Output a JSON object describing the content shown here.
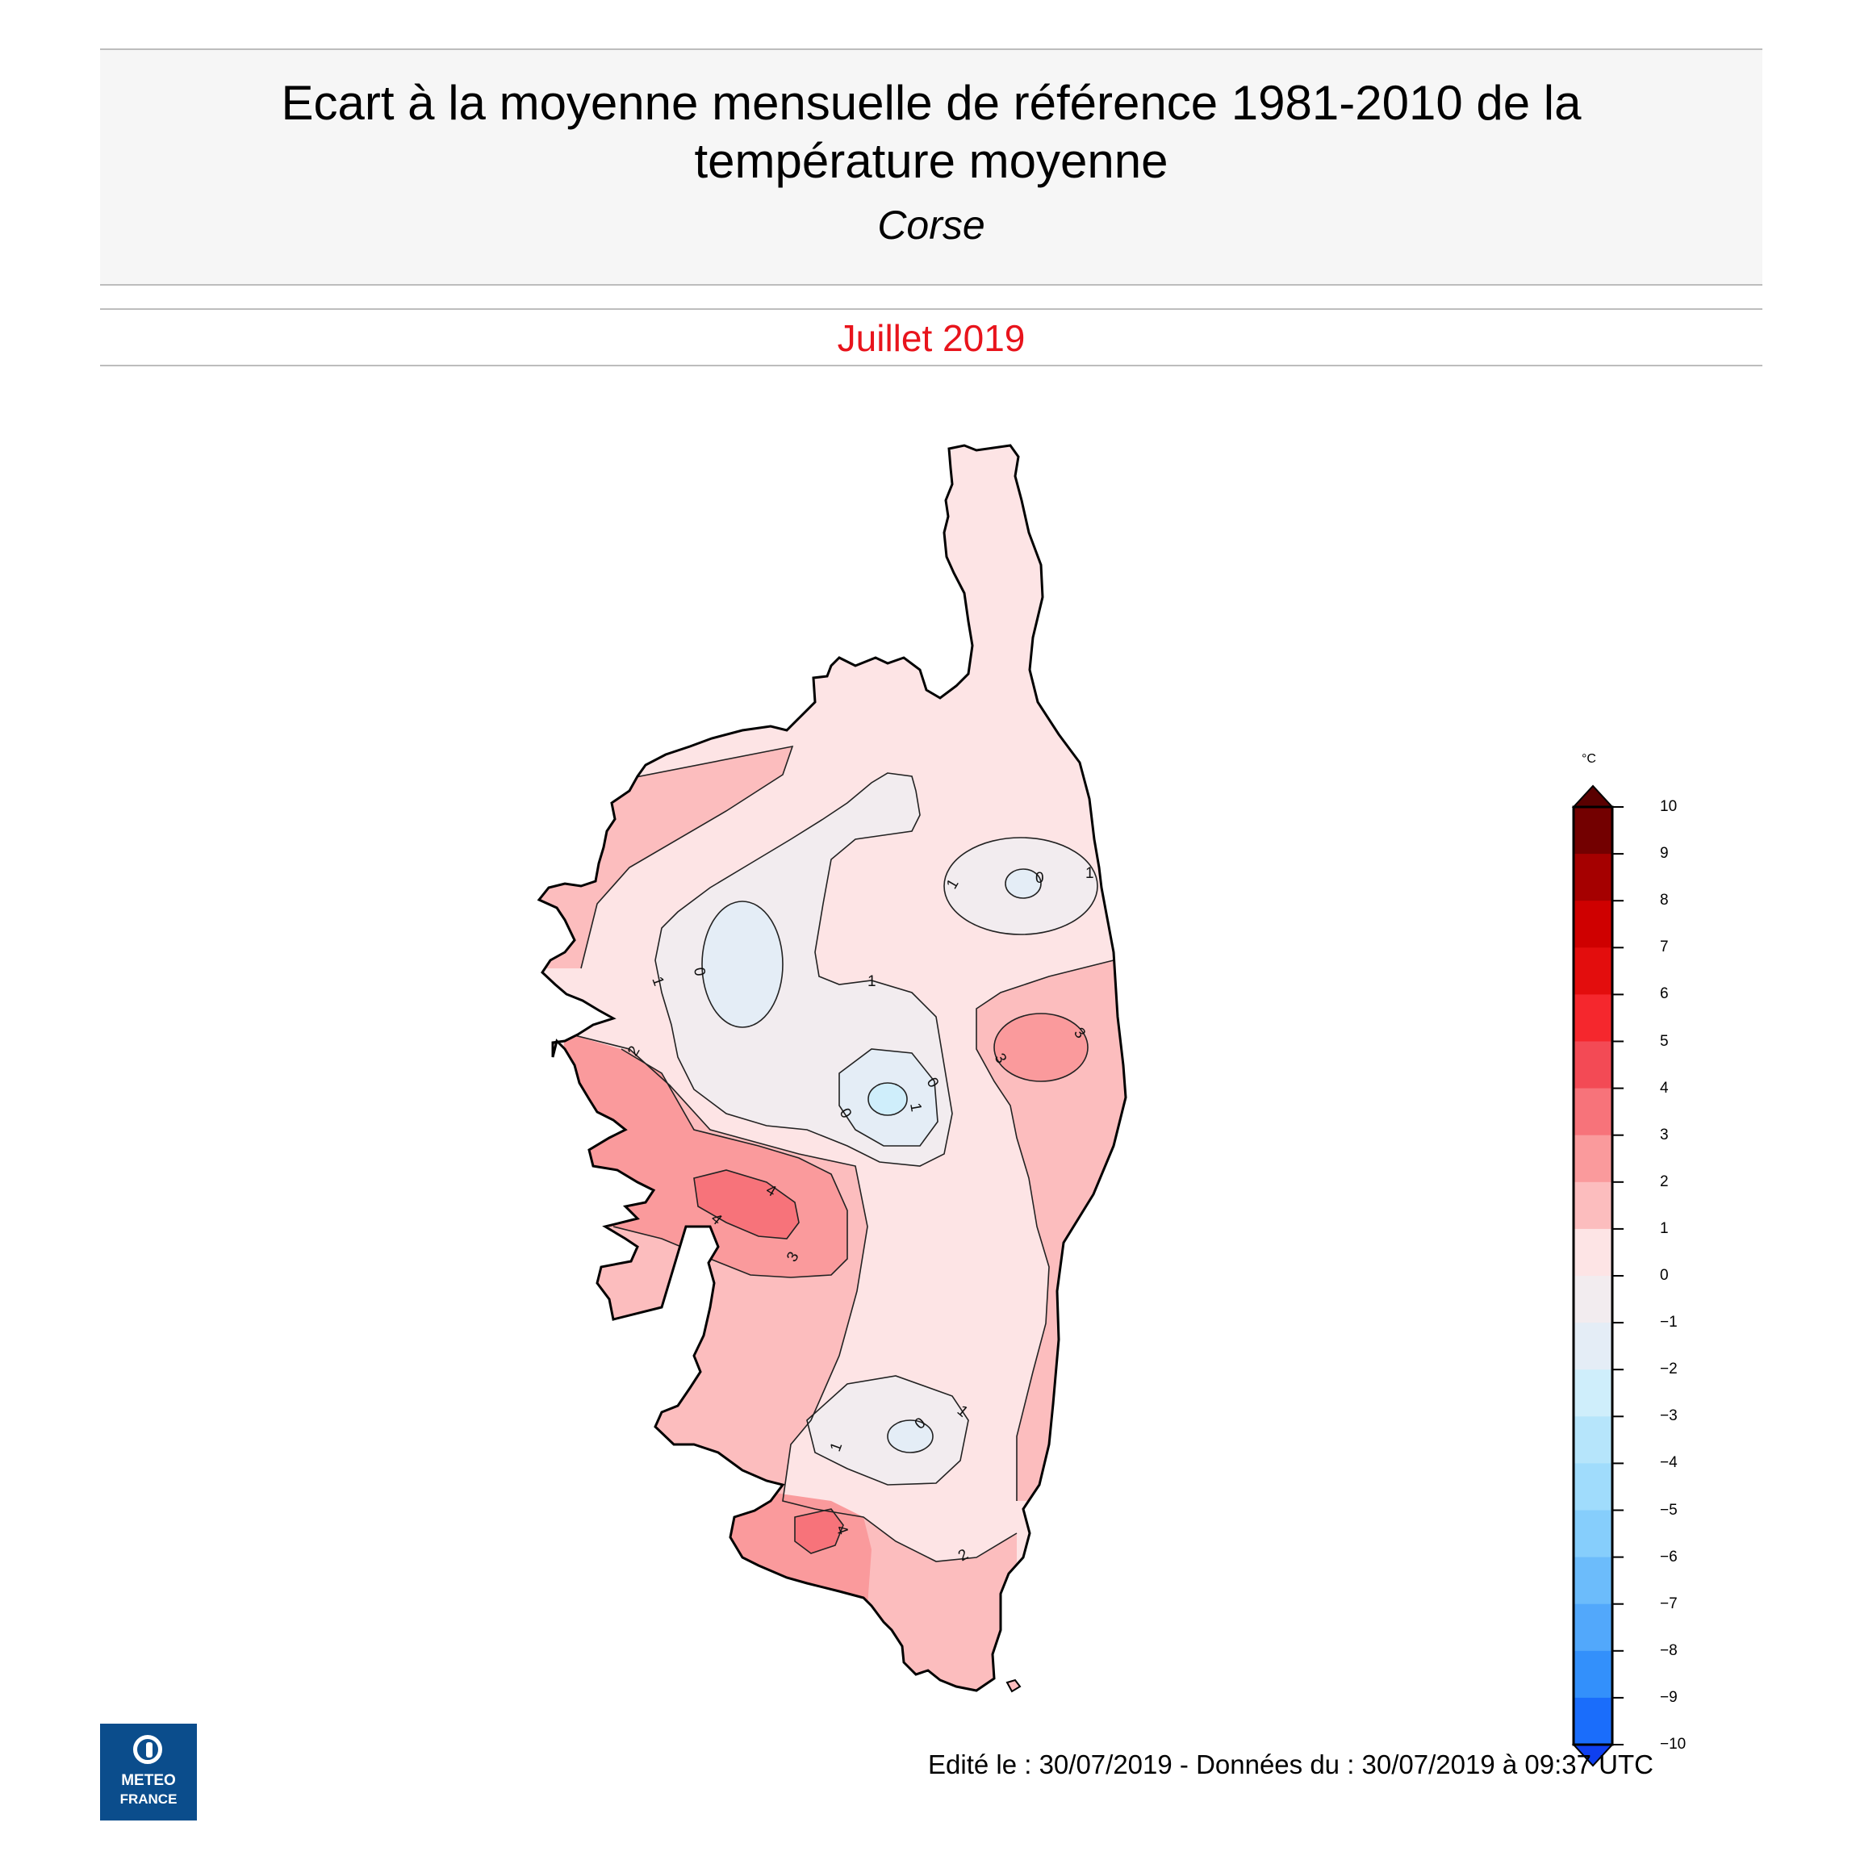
{
  "header": {
    "title_line1": "Ecart à la moyenne mensuelle de référence 1981-2010 de la",
    "title_line2": "température moyenne",
    "region": "Corse"
  },
  "period": "Juillet 2019",
  "footer": "Edité le : 30/07/2019 - Données du : 30/07/2019 à 09:37 UTC",
  "logo": {
    "line1": "METEO",
    "line2": "FRANCE"
  },
  "legend": {
    "unit": "°C",
    "ticks": [
      "10",
      "9",
      "8",
      "7",
      "6",
      "5",
      "4",
      "3",
      "2",
      "1",
      "0",
      "−1",
      "−2",
      "−3",
      "−4",
      "−5",
      "−6",
      "−7",
      "−8",
      "−9",
      "−10"
    ],
    "colors": [
      "#730000",
      "#a50000",
      "#cf0000",
      "#e30d0d",
      "#f5272d",
      "#f34a55",
      "#f7737a",
      "#fa9a9c",
      "#fcbdbe",
      "#fde4e5",
      "#f2ecef",
      "#e4edf6",
      "#cfeefb",
      "#b6e5fb",
      "#a0dcfc",
      "#86cefc",
      "#6cbcfb",
      "#52a8fb",
      "#3390fb",
      "#1a6dfb"
    ],
    "top_arrow_color": "#5a0000",
    "bottom_arrow_color": "#0f40f0"
  },
  "contour_labels": [
    "1",
    "0",
    "1",
    "1",
    "0",
    "1",
    "3",
    "3",
    "2",
    "0",
    "0",
    "1",
    "4",
    "4",
    "3",
    "1",
    "0",
    "1",
    "2",
    "4"
  ],
  "fills": {
    "background_zone": "#fde4e5",
    "zone_2_3": "#fcbdbe",
    "zone_3_4": "#fa9a9c",
    "zone_4_5": "#f7737a",
    "zone_0_1": "#f2ecef",
    "zone_m1_0": "#e4edf6",
    "zone_m2_m1": "#cfeefb"
  }
}
